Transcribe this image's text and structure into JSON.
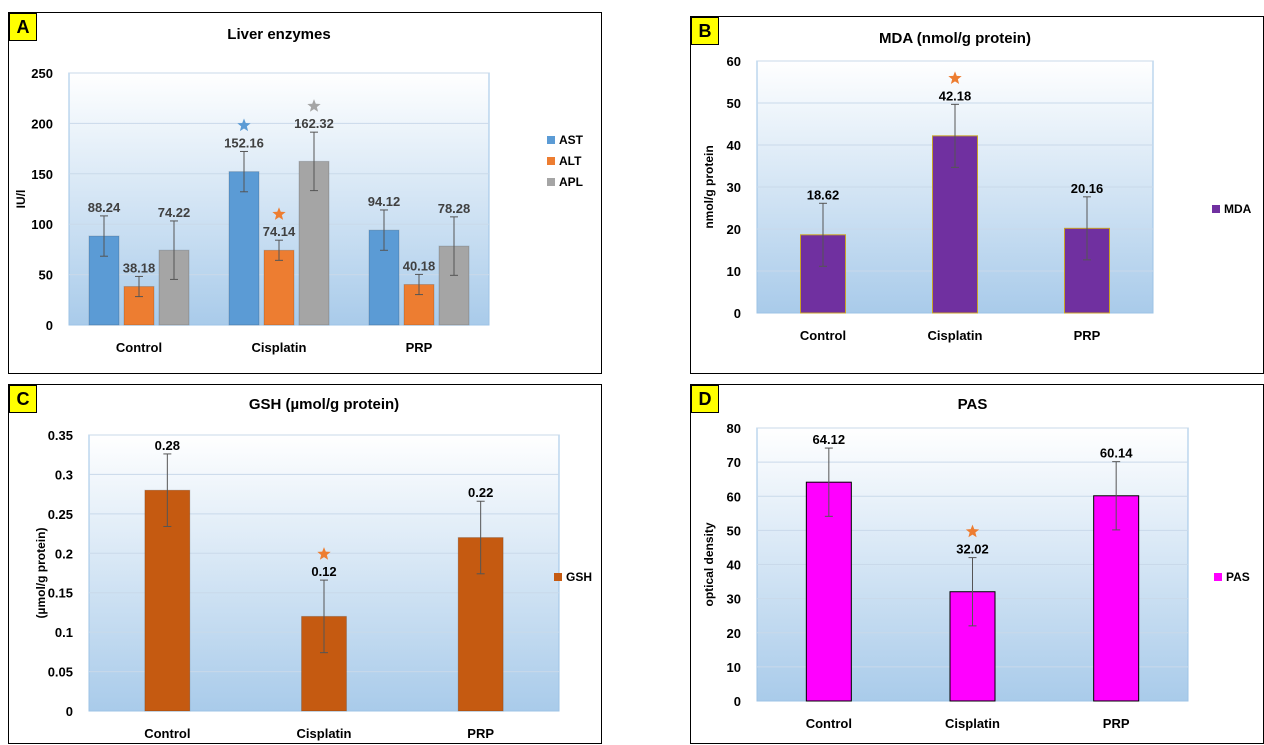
{
  "chart_data": [
    {
      "panel_label": "A",
      "type": "bar",
      "title": "Liver enzymes",
      "ylabel": "IU/l",
      "xlabel": "",
      "ylim": [
        0,
        250
      ],
      "yticks": [
        0,
        50,
        100,
        150,
        200,
        250
      ],
      "categories": [
        "Control",
        "Cisplatin",
        "PRP"
      ],
      "series": [
        {
          "name": "AST",
          "color": "#5b9bd5",
          "values": [
            88.24,
            152.16,
            94.12
          ],
          "errors": [
            20,
            20,
            20
          ],
          "labels": [
            "88.24",
            "152.16",
            "94.12"
          ]
        },
        {
          "name": "ALT",
          "color": "#ed7d31",
          "values": [
            38.18,
            74.14,
            40.18
          ],
          "errors": [
            10,
            10,
            10
          ],
          "labels": [
            "38.18",
            "74.14",
            "40.18"
          ]
        },
        {
          "name": "APL",
          "color": "#a5a5a5",
          "values": [
            74.22,
            162.32,
            78.28
          ],
          "errors": [
            29,
            29,
            29
          ],
          "labels": [
            "74.22",
            "162.32",
            "78.28"
          ]
        }
      ],
      "significance_markers": [
        {
          "category": "Cisplatin",
          "series": "AST",
          "symbol": "star",
          "color": "#5b9bd5"
        },
        {
          "category": "Cisplatin",
          "series": "ALT",
          "symbol": "star",
          "color": "#ed7d31"
        },
        {
          "category": "Cisplatin",
          "series": "APL",
          "symbol": "star",
          "color": "#a5a5a5"
        }
      ],
      "legend": "right",
      "grid": true
    },
    {
      "panel_label": "B",
      "type": "bar",
      "title": "MDA (nmol/g protein)",
      "ylabel": "nmol/g protein",
      "xlabel": "",
      "ylim": [
        0,
        60
      ],
      "yticks": [
        0,
        10,
        20,
        30,
        40,
        50,
        60
      ],
      "categories": [
        "Control",
        "Cisplatin",
        "PRP"
      ],
      "series": [
        {
          "name": "MDA",
          "color": "#7030a0",
          "values": [
            18.62,
            42.18,
            20.16
          ],
          "errors": [
            7.5,
            7.5,
            7.5
          ],
          "labels": [
            "18.62",
            "42.18",
            "20.16"
          ]
        }
      ],
      "significance_markers": [
        {
          "category": "Cisplatin",
          "series": "MDA",
          "symbol": "star",
          "color": "#ed7d31"
        }
      ],
      "legend": "right",
      "grid": true
    },
    {
      "panel_label": "C",
      "type": "bar",
      "title": "GSH (µmol/g protein)",
      "ylabel": "(µmol/g protein)",
      "xlabel": "",
      "ylim": [
        0,
        0.35
      ],
      "yticks": [
        "0",
        "0.05",
        "0.1",
        "0.15",
        "0.2",
        "0.25",
        "0.3",
        "0.35"
      ],
      "categories": [
        "Control",
        "Cisplatin",
        "PRP"
      ],
      "series": [
        {
          "name": "GSH",
          "color": "#c55a11",
          "values": [
            0.28,
            0.12,
            0.22
          ],
          "errors": [
            0.046,
            0.046,
            0.046
          ],
          "labels": [
            "0.28",
            "0.12",
            "0.22"
          ]
        }
      ],
      "significance_markers": [
        {
          "category": "Cisplatin",
          "series": "GSH",
          "symbol": "star",
          "color": "#ed7d31"
        }
      ],
      "legend": "right",
      "grid": true
    },
    {
      "panel_label": "D",
      "type": "bar",
      "title": "PAS",
      "ylabel": "optical density",
      "xlabel": "",
      "ylim": [
        0,
        80
      ],
      "yticks": [
        0,
        10,
        20,
        30,
        40,
        50,
        60,
        70,
        80
      ],
      "categories": [
        "Control",
        "Cisplatin",
        "PRP"
      ],
      "series": [
        {
          "name": "PAS",
          "color": "#ff00ff",
          "values": [
            64.12,
            32.02,
            60.14
          ],
          "errors": [
            10,
            10,
            10
          ],
          "labels": [
            "64.12",
            "32.02",
            "60.14"
          ]
        }
      ],
      "significance_markers": [
        {
          "category": "Cisplatin",
          "series": "PAS",
          "symbol": "star",
          "color": "#ed7d31"
        }
      ],
      "legend": "right",
      "grid": true
    }
  ]
}
